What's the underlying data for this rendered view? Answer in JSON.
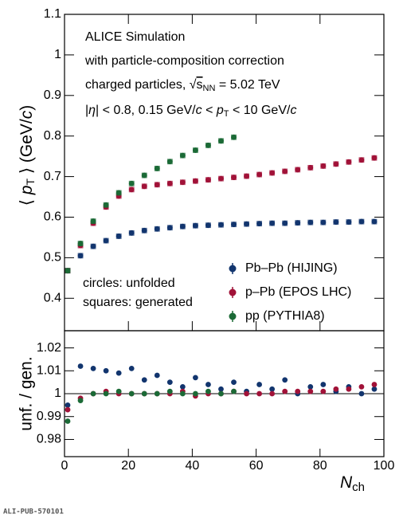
{
  "chart_data": [
    {
      "type": "scatter",
      "y_label": [
        "⟨ ",
        "p",
        "T",
        " ⟩ (GeV/",
        "c",
        ")"
      ],
      "annotations": [
        [
          "ALICE Simulation"
        ],
        [
          "with particle-composition correction"
        ],
        [
          "charged particles, ",
          "√",
          "s",
          "NN",
          " = 5.02 TeV"
        ],
        [
          "|",
          "η",
          "| < 0.8, 0.15 GeV/",
          "c",
          " < ",
          "p",
          "T",
          " < 10 GeV/",
          "c"
        ],
        [
          "circles: unfolded"
        ],
        [
          "squares: generated"
        ]
      ],
      "xlim": [
        0,
        100
      ],
      "ylim": [
        0.32,
        1.1
      ],
      "yticks": [
        0.4,
        0.5,
        0.6,
        0.7,
        0.8,
        0.9,
        1,
        1.1
      ],
      "legend": "lower right",
      "series": [
        {
          "name": "Pb–Pb (HIJING)",
          "color": "#12356e",
          "x": [
            1,
            5,
            9,
            13,
            17,
            21,
            25,
            29,
            33,
            37,
            41,
            45,
            49,
            53,
            57,
            61,
            65,
            69,
            73,
            77,
            81,
            85,
            89,
            93,
            97
          ],
          "values": [
            0.468,
            0.505,
            0.528,
            0.542,
            0.553,
            0.561,
            0.567,
            0.571,
            0.574,
            0.577,
            0.579,
            0.58,
            0.581,
            0.582,
            0.583,
            0.584,
            0.585,
            0.585,
            0.586,
            0.587,
            0.587,
            0.588,
            0.588,
            0.589,
            0.589
          ]
        },
        {
          "name": "p–Pb (EPOS LHC)",
          "color": "#a11238",
          "x": [
            1,
            5,
            9,
            13,
            17,
            21,
            25,
            29,
            33,
            37,
            41,
            45,
            49,
            53,
            57,
            61,
            65,
            69,
            73,
            77,
            81,
            85,
            89,
            93,
            97
          ],
          "values": [
            0.468,
            0.53,
            0.585,
            0.625,
            0.652,
            0.668,
            0.676,
            0.68,
            0.683,
            0.686,
            0.689,
            0.692,
            0.695,
            0.698,
            0.701,
            0.705,
            0.709,
            0.713,
            0.717,
            0.722,
            0.726,
            0.731,
            0.736,
            0.741,
            0.746
          ]
        },
        {
          "name": "pp (PYTHIA8)",
          "color": "#1b6a36",
          "x": [
            1,
            5,
            9,
            13,
            17,
            21,
            25,
            29,
            33,
            37,
            41,
            45,
            49,
            53
          ],
          "values": [
            0.468,
            0.535,
            0.59,
            0.63,
            0.66,
            0.683,
            0.703,
            0.72,
            0.737,
            0.752,
            0.765,
            0.777,
            0.788,
            0.797
          ]
        }
      ]
    },
    {
      "type": "scatter",
      "y_label": "unf. / gen.",
      "x_label": [
        "N",
        "ch"
      ],
      "xlim": [
        0,
        100
      ],
      "ylim": [
        0.9725,
        1.0275
      ],
      "xticks": [
        0,
        20,
        40,
        60,
        80,
        100
      ],
      "yticks": [
        0.98,
        0.99,
        1,
        1.01,
        1.02
      ],
      "series": [
        {
          "name": "Pb–Pb (HIJING)",
          "color": "#12356e",
          "x": [
            1,
            5,
            9,
            13,
            17,
            21,
            25,
            29,
            33,
            37,
            41,
            45,
            49,
            53,
            57,
            61,
            65,
            69,
            73,
            77,
            81,
            85,
            89,
            93,
            97
          ],
          "values": [
            0.995,
            1.012,
            1.011,
            1.01,
            1.009,
            1.011,
            1.006,
            1.008,
            1.005,
            1.003,
            1.007,
            1.004,
            1.002,
            1.005,
            1.001,
            1.004,
            1.002,
            1.006,
            1.0,
            1.003,
            1.004,
            1.001,
            1.003,
            1.0,
            1.002
          ]
        },
        {
          "name": "p–Pb (EPOS LHC)",
          "color": "#a11238",
          "x": [
            1,
            5,
            9,
            13,
            17,
            21,
            25,
            29,
            33,
            37,
            41,
            45,
            49,
            53,
            57,
            61,
            65,
            69,
            73,
            77,
            81,
            85,
            89,
            93,
            97
          ],
          "values": [
            0.993,
            0.998,
            1.0,
            1.001,
            1.0,
            1.0,
            1.0,
            1.0,
            1.0,
            1.001,
            0.999,
            1.0,
            1.0,
            1.001,
            1.0,
            1.0,
            1.0,
            1.001,
            1.001,
            1.001,
            1.001,
            1.002,
            1.002,
            1.003,
            1.004
          ]
        },
        {
          "name": "pp (PYTHIA8)",
          "color": "#1b6a36",
          "x": [
            1,
            5,
            9,
            13,
            17,
            21,
            25,
            29,
            33,
            37,
            41,
            45,
            49,
            53
          ],
          "values": [
            0.988,
            0.997,
            1.0,
            1.0,
            1.001,
            1.0,
            1.0,
            1.0,
            1.001,
            1.0,
            1.0,
            1.001,
            1.0,
            1.001
          ]
        }
      ]
    }
  ],
  "footer": "ALI-PUB-570101"
}
